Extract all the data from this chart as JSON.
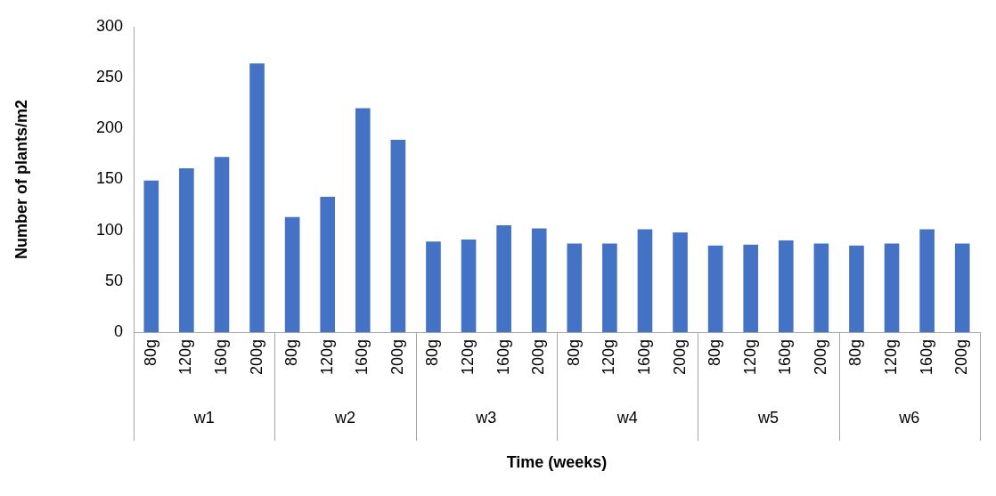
{
  "chart_data": {
    "type": "bar",
    "xlabel": "Time (weeks)",
    "ylabel": "Number of plants/m2",
    "categories": [
      "80g",
      "120g",
      "160g",
      "200g",
      "80g",
      "120g",
      "160g",
      "200g",
      "80g",
      "120g",
      "160g",
      "200g",
      "80g",
      "120g",
      "160g",
      "200g",
      "80g",
      "120g",
      "160g",
      "200g",
      "80g",
      "120g",
      "160g",
      "200g"
    ],
    "values": [
      149,
      161,
      172,
      264,
      113,
      133,
      220,
      189,
      89,
      91,
      105,
      102,
      87,
      87,
      101,
      98,
      85,
      86,
      90,
      87,
      85,
      87,
      101,
      87
    ],
    "color": "#4472c4",
    "ylim": [
      0,
      300
    ],
    "yticks": [
      0,
      50,
      100,
      150,
      200,
      250,
      300
    ],
    "annotations": [
      "w1",
      "w2",
      "w3",
      "w4",
      "w5",
      "w6"
    ],
    "grid": false,
    "legend": false
  }
}
